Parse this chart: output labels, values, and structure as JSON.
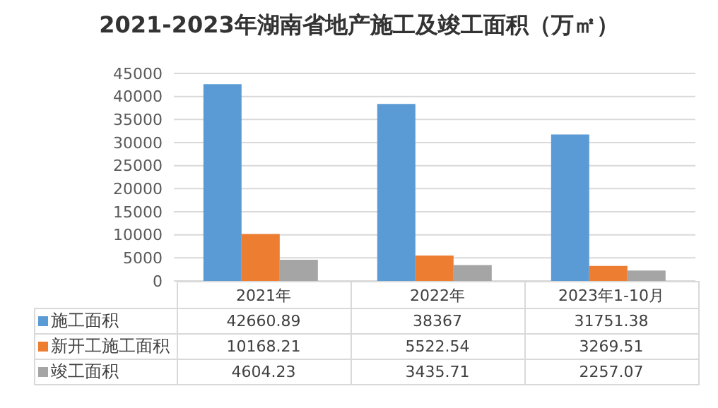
{
  "chart_data": {
    "type": "bar",
    "title": "2021-2023年湖南省地产施工及竣工面积（万㎡）",
    "categories": [
      "2021年",
      "2022年",
      "2023年1-10月"
    ],
    "series": [
      {
        "name": "施工面积",
        "color": "#5b9bd5",
        "values": [
          42660.89,
          38367,
          31751.38
        ]
      },
      {
        "name": "新开工施工面积",
        "color": "#ed7d31",
        "values": [
          10168.21,
          5522.54,
          3269.51
        ]
      },
      {
        "name": "竣工面积",
        "color": "#a5a5a5",
        "values": [
          4604.23,
          3435.71,
          2257.07
        ]
      }
    ],
    "ylim": [
      0,
      45000
    ],
    "yticks": [
      0,
      5000,
      10000,
      15000,
      20000,
      25000,
      30000,
      35000,
      40000,
      45000
    ],
    "grid": "y",
    "legend": "bottom",
    "data_labels": true
  }
}
